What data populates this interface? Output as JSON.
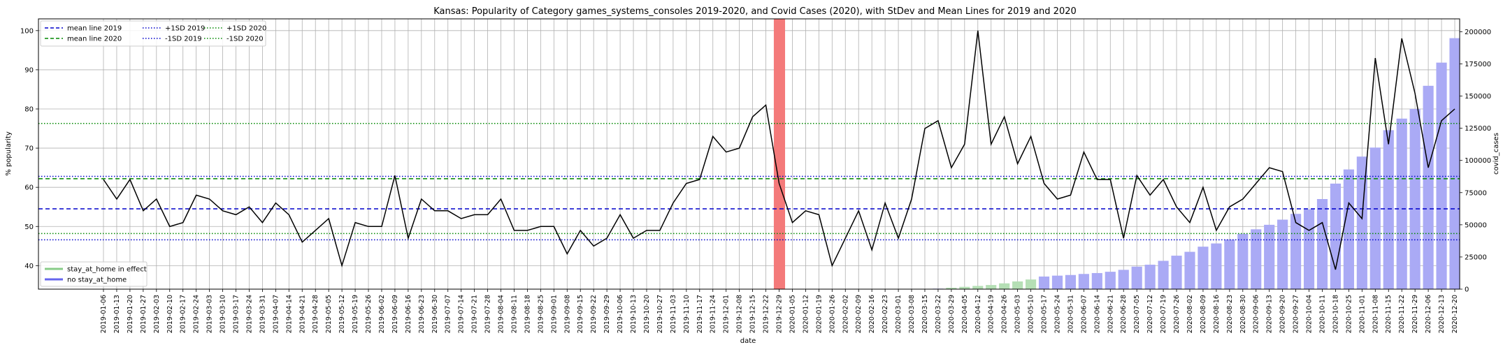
{
  "chart_data": {
    "type": "line",
    "title": "Kansas: Popularity of Category games_systems_consoles 2019-2020, and Covid Cases (2020), with StDev and Mean Lines for 2019 and 2020",
    "xlabel": "date",
    "ylabel": "% popularity",
    "y2label": "covid_cases",
    "ylim": [
      34,
      103
    ],
    "y2lim": [
      0,
      210000
    ],
    "yticks": [
      40,
      50,
      60,
      70,
      80,
      90,
      100
    ],
    "y2ticks": [
      0,
      25000,
      50000,
      75000,
      100000,
      125000,
      150000,
      175000,
      200000
    ],
    "y2ticklabels": [
      "0",
      "25000",
      "50000",
      "75000",
      "100000",
      "125000",
      "150000",
      "175000",
      "200000"
    ],
    "grid": true,
    "x_start": "2019-01-06",
    "dates": [
      "2019-01-06",
      "2019-01-13",
      "2019-01-20",
      "2019-01-27",
      "2019-02-03",
      "2019-02-10",
      "2019-02-17",
      "2019-02-24",
      "2019-03-03",
      "2019-03-10",
      "2019-03-17",
      "2019-03-24",
      "2019-03-31",
      "2019-04-07",
      "2019-04-14",
      "2019-04-21",
      "2019-04-28",
      "2019-05-05",
      "2019-05-12",
      "2019-05-19",
      "2019-05-26",
      "2019-06-02",
      "2019-06-09",
      "2019-06-16",
      "2019-06-23",
      "2019-06-30",
      "2019-07-07",
      "2019-07-14",
      "2019-07-21",
      "2019-07-28",
      "2019-08-04",
      "2019-08-11",
      "2019-08-18",
      "2019-08-25",
      "2019-09-01",
      "2019-09-08",
      "2019-09-15",
      "2019-09-22",
      "2019-09-29",
      "2019-10-06",
      "2019-10-13",
      "2019-10-20",
      "2019-10-27",
      "2019-11-03",
      "2019-11-10",
      "2019-11-17",
      "2019-11-24",
      "2019-12-01",
      "2019-12-08",
      "2019-12-15",
      "2019-12-22",
      "2019-12-29",
      "2020-01-05",
      "2020-01-12",
      "2020-01-19",
      "2020-01-26",
      "2020-02-02",
      "2020-02-09",
      "2020-02-16",
      "2020-02-23",
      "2020-03-01",
      "2020-03-08",
      "2020-03-15",
      "2020-03-22",
      "2020-03-29",
      "2020-04-05",
      "2020-04-12",
      "2020-04-19",
      "2020-04-26",
      "2020-05-03",
      "2020-05-10",
      "2020-05-17",
      "2020-05-24",
      "2020-05-31",
      "2020-06-07",
      "2020-06-14",
      "2020-06-21",
      "2020-06-28",
      "2020-07-05",
      "2020-07-12",
      "2020-07-19",
      "2020-07-26",
      "2020-08-02",
      "2020-08-09",
      "2020-08-16",
      "2020-08-23",
      "2020-08-30",
      "2020-09-06",
      "2020-09-13",
      "2020-09-20",
      "2020-09-27",
      "2020-10-04",
      "2020-10-11",
      "2020-10-18",
      "2020-10-25",
      "2020-11-01",
      "2020-11-08",
      "2020-11-15",
      "2020-11-22",
      "2020-11-29",
      "2020-12-06",
      "2020-12-13",
      "2020-12-20"
    ],
    "popularity": [
      62,
      57,
      62,
      54,
      57,
      50,
      51,
      58,
      57,
      54,
      53,
      55,
      51,
      56,
      53,
      46,
      49,
      52,
      40,
      51,
      50,
      50,
      63,
      47,
      57,
      54,
      54,
      52,
      53,
      53,
      57,
      49,
      49,
      50,
      50,
      43,
      49,
      45,
      47,
      53,
      47,
      49,
      49,
      56,
      61,
      62,
      73,
      69,
      70,
      78,
      81,
      61,
      51,
      54,
      53,
      40,
      47,
      54,
      44,
      56,
      47,
      57,
      75,
      77,
      65,
      71,
      100,
      71,
      78,
      66,
      73,
      61,
      57,
      58,
      69,
      62,
      62,
      47,
      63,
      58,
      62,
      55,
      51,
      60,
      49,
      55,
      57,
      61,
      65,
      64,
      51,
      49,
      51,
      39,
      56,
      52,
      93,
      71,
      98,
      84,
      65,
      77,
      80
    ],
    "covid_cases": [
      null,
      null,
      null,
      null,
      null,
      null,
      null,
      null,
      null,
      null,
      null,
      null,
      null,
      null,
      null,
      null,
      null,
      null,
      null,
      null,
      null,
      null,
      null,
      null,
      null,
      null,
      null,
      null,
      null,
      null,
      null,
      null,
      null,
      null,
      null,
      null,
      null,
      null,
      null,
      null,
      null,
      null,
      null,
      null,
      null,
      null,
      null,
      null,
      null,
      null,
      null,
      null,
      0,
      0,
      0,
      0,
      0,
      0,
      0,
      0,
      0,
      20,
      100,
      400,
      1100,
      1800,
      2500,
      3200,
      4500,
      6000,
      7500,
      9800,
      10500,
      11000,
      11800,
      12500,
      13500,
      15000,
      17500,
      19000,
      22000,
      26000,
      29000,
      33000,
      35500,
      38500,
      43000,
      46500,
      50000,
      54000,
      58500,
      62000,
      70000,
      82000,
      93000,
      103000,
      110000,
      123500,
      132500,
      140000,
      158000,
      176000,
      195000
    ],
    "stay_at_home": [
      false,
      false,
      false,
      false,
      false,
      false,
      false,
      false,
      false,
      false,
      false,
      false,
      false,
      false,
      false,
      false,
      false,
      false,
      false,
      false,
      false,
      false,
      false,
      false,
      false,
      false,
      false,
      false,
      false,
      false,
      false,
      false,
      false,
      false,
      false,
      false,
      false,
      false,
      false,
      false,
      false,
      false,
      false,
      false,
      false,
      false,
      false,
      false,
      false,
      false,
      false,
      false,
      false,
      false,
      false,
      false,
      false,
      false,
      false,
      false,
      false,
      false,
      false,
      false,
      true,
      true,
      true,
      true,
      true,
      true,
      true,
      false,
      false,
      false,
      false,
      false,
      false,
      false,
      false,
      false,
      false,
      false,
      false,
      false,
      false,
      false,
      false,
      false,
      false,
      false,
      false,
      false,
      false,
      false,
      false,
      false,
      false,
      false,
      false,
      false,
      false,
      false,
      false
    ],
    "highlight_date": "2019-12-29",
    "mean_2019": 54.5,
    "mean_2020": 62.2,
    "plus1sd_2019": 62.8,
    "minus1sd_2019": 46.6,
    "plus1sd_2020": 76.3,
    "minus1sd_2020": 48.2,
    "legend_left": {
      "position": "upper-left",
      "entries": [
        {
          "label": "mean line 2019",
          "color": "#0000cc",
          "style": "dashed"
        },
        {
          "label": "+1SD 2019",
          "color": "#0000cc",
          "style": "dotted"
        },
        {
          "label": "+1SD 2020",
          "color": "#008800",
          "style": "dotted"
        },
        {
          "label": "mean line 2020",
          "color": "#008800",
          "style": "dashed"
        },
        {
          "label": "-1SD 2019",
          "color": "#0000cc",
          "style": "dotted"
        },
        {
          "label": "-1SD 2020",
          "color": "#008800",
          "style": "dotted"
        }
      ]
    },
    "legend_bottom": {
      "position": "lower-left",
      "entries": [
        {
          "label": "stay_at_home in effect",
          "color": "#88cc88"
        },
        {
          "label": "no stay_at_home",
          "color": "#6666ee"
        }
      ]
    },
    "colors": {
      "line": "#000000",
      "bar_no_stay": "#aaaaf5",
      "bar_stay": "#b5dfb5",
      "highlight": "#f47a7a",
      "grid": "#b0b0b0"
    }
  }
}
